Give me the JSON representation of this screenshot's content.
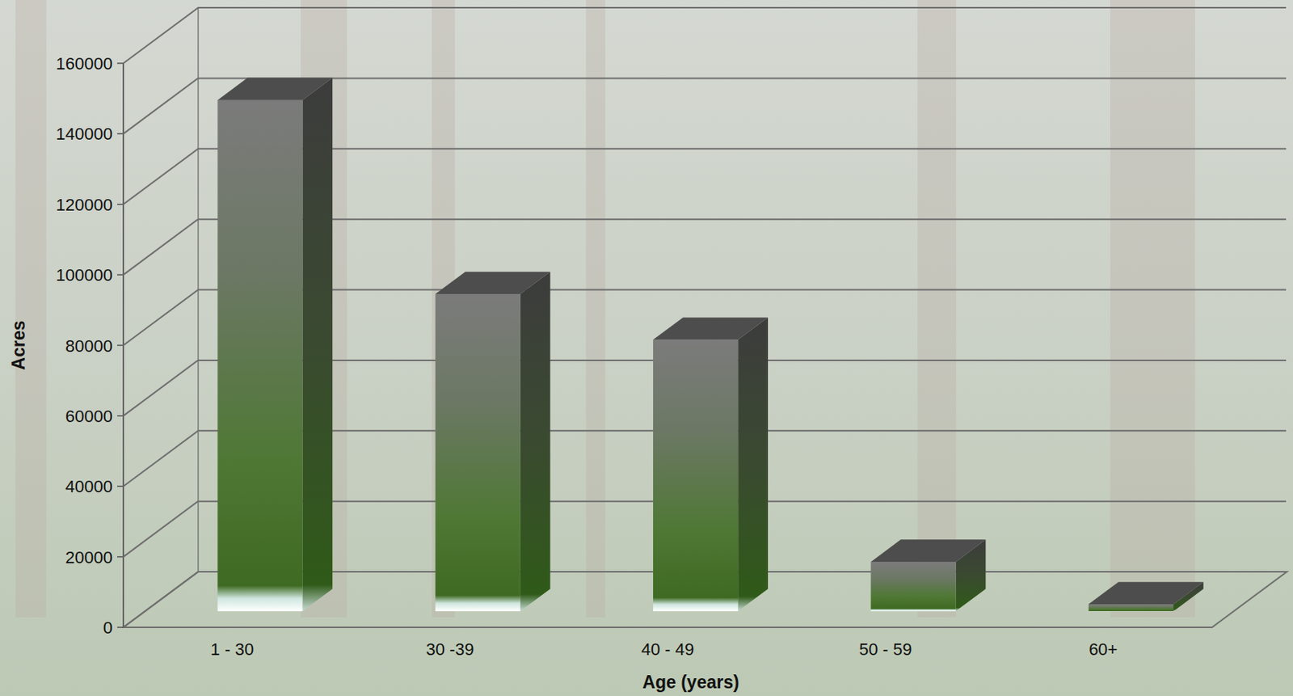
{
  "chart_data": {
    "type": "bar",
    "categories": [
      "1 - 30",
      "30 -39",
      "40 - 49",
      "50 - 59",
      "60+"
    ],
    "values": [
      145000,
      90000,
      77000,
      14000,
      2000
    ],
    "color": "#3f6a22",
    "x_label": "Age (years)",
    "y_label": "Acres",
    "ylim": [
      0,
      160000
    ],
    "yticks": [
      0,
      20000,
      40000,
      60000,
      80000,
      100000,
      120000,
      140000,
      160000
    ],
    "grid": true
  }
}
